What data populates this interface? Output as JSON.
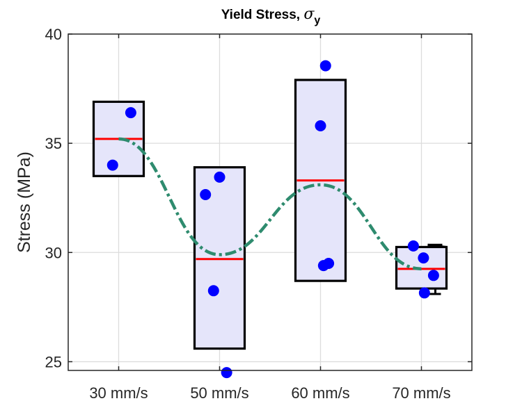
{
  "chart_data": {
    "type": "box",
    "title": "Yield Stress, ",
    "title_symbol": "σ",
    "title_subscript": "y",
    "xlabel": "",
    "ylabel": "Stress (MPa)",
    "ylim": [
      24.6,
      40
    ],
    "yticks": [
      25,
      30,
      35,
      40
    ],
    "grid": true,
    "categories": [
      "30 mm/s",
      "50 mm/s",
      "60 mm/s",
      "70 mm/s"
    ],
    "boxes": [
      {
        "category": "30 mm/s",
        "low": 33.5,
        "high": 36.9,
        "median": 35.2,
        "whisker_low": null,
        "whisker_high": null
      },
      {
        "category": "50 mm/s",
        "low": 25.6,
        "high": 33.9,
        "median": 29.7,
        "whisker_low": null,
        "whisker_high": null
      },
      {
        "category": "60 mm/s",
        "low": 28.7,
        "high": 37.9,
        "median": 33.3,
        "whisker_low": null,
        "whisker_high": null
      },
      {
        "category": "70 mm/s",
        "low": 28.35,
        "high": 30.25,
        "median": 29.25,
        "whisker_low": 28.1,
        "whisker_high": 30.35
      }
    ],
    "points": [
      {
        "category": "30 mm/s",
        "offset": 0.12,
        "y": 36.4
      },
      {
        "category": "30 mm/s",
        "offset": -0.06,
        "y": 34.0
      },
      {
        "category": "50 mm/s",
        "offset": 0.0,
        "y": 33.45
      },
      {
        "category": "50 mm/s",
        "offset": -0.14,
        "y": 32.65
      },
      {
        "category": "50 mm/s",
        "offset": -0.06,
        "y": 28.25
      },
      {
        "category": "50 mm/s",
        "offset": 0.07,
        "y": 24.5
      },
      {
        "category": "60 mm/s",
        "offset": 0.05,
        "y": 38.55
      },
      {
        "category": "60 mm/s",
        "offset": 0.0,
        "y": 35.8
      },
      {
        "category": "60 mm/s",
        "offset": 0.08,
        "y": 29.5
      },
      {
        "category": "60 mm/s",
        "offset": 0.03,
        "y": 29.4
      },
      {
        "category": "70 mm/s",
        "offset": -0.08,
        "y": 30.3
      },
      {
        "category": "70 mm/s",
        "offset": 0.02,
        "y": 29.75
      },
      {
        "category": "70 mm/s",
        "offset": 0.12,
        "y": 28.95
      },
      {
        "category": "70 mm/s",
        "offset": 0.03,
        "y": 28.15
      }
    ],
    "trend": {
      "style": "dash-dot",
      "values": [
        35.2,
        29.9,
        33.1,
        29.25
      ]
    },
    "colors": {
      "box_fill": "#e5e5fa",
      "box_edge": "#000000",
      "median": "#ff0000",
      "points": "#0000ff",
      "trend": "#2e8b6e",
      "grid": "#dcdcdc"
    }
  }
}
